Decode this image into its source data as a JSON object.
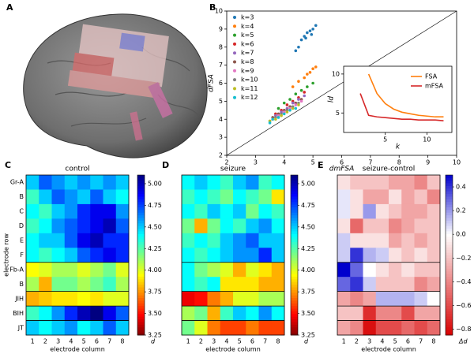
{
  "panels": [
    "A",
    "B",
    "C",
    "D",
    "E"
  ],
  "chart_data": [
    {
      "type": "scatter",
      "xlabel": "dmFSA",
      "ylabel": "dFSA",
      "xlim": [
        2,
        10
      ],
      "ylim": [
        2,
        10
      ],
      "xticks": [
        2,
        3,
        4,
        5,
        6,
        7,
        8,
        9,
        10
      ],
      "yticks": [
        2,
        3,
        4,
        5,
        6,
        7,
        8,
        9,
        10
      ],
      "series": [
        {
          "name": "k=3",
          "color": "#1f77b4",
          "x": [
            4.5,
            4.6,
            4.7,
            4.8,
            4.9,
            5.0,
            5.1,
            4.4,
            4.75,
            4.95
          ],
          "values": [
            8.0,
            8.4,
            8.6,
            8.8,
            8.9,
            9.0,
            9.2,
            7.8,
            8.5,
            8.7
          ]
        },
        {
          "name": "k=4",
          "color": "#ff7f0e",
          "x": [
            4.3,
            4.5,
            4.7,
            4.8,
            4.9,
            5.0,
            5.1
          ],
          "values": [
            5.8,
            6.1,
            6.3,
            6.5,
            6.6,
            6.8,
            6.9
          ]
        },
        {
          "name": "k=5",
          "color": "#2ca02c",
          "x": [
            3.8,
            4.0,
            4.2,
            4.4,
            4.6,
            4.8,
            5.0
          ],
          "values": [
            4.6,
            4.9,
            5.1,
            5.4,
            5.6,
            5.8,
            6.0
          ]
        },
        {
          "name": "k=6",
          "color": "#d62728",
          "x": [
            3.7,
            3.9,
            4.1,
            4.3,
            4.5,
            4.7
          ],
          "values": [
            4.3,
            4.5,
            4.8,
            5.0,
            5.2,
            5.5
          ]
        },
        {
          "name": "k=7",
          "color": "#9467bd",
          "x": [
            3.7,
            3.9,
            4.1,
            4.3,
            4.5,
            4.7
          ],
          "values": [
            4.2,
            4.4,
            4.6,
            4.9,
            5.1,
            5.3
          ]
        },
        {
          "name": "k=8",
          "color": "#8c564b",
          "x": [
            3.6,
            3.8,
            4.0,
            4.2,
            4.4,
            4.6
          ],
          "values": [
            4.1,
            4.3,
            4.5,
            4.7,
            4.9,
            5.1
          ]
        },
        {
          "name": "k=9",
          "color": "#e377c2",
          "x": [
            3.6,
            3.8,
            4.0,
            4.2,
            4.4,
            4.6
          ],
          "values": [
            4.0,
            4.2,
            4.4,
            4.6,
            4.8,
            5.0
          ]
        },
        {
          "name": "k=10",
          "color": "#7f7f7f",
          "x": [
            3.5,
            3.7,
            3.9,
            4.1,
            4.3,
            4.5
          ],
          "values": [
            3.9,
            4.1,
            4.3,
            4.5,
            4.7,
            4.9
          ]
        },
        {
          "name": "k=11",
          "color": "#bcbd22",
          "x": [
            3.5,
            3.7,
            3.9,
            4.1,
            4.3,
            4.5
          ],
          "values": [
            3.9,
            4.0,
            4.2,
            4.4,
            4.6,
            4.8
          ]
        },
        {
          "name": "k=12",
          "color": "#17becf",
          "x": [
            3.5,
            3.6,
            3.8,
            4.0,
            4.2,
            4.4
          ],
          "values": [
            3.8,
            4.0,
            4.1,
            4.3,
            4.5,
            4.6
          ]
        }
      ]
    },
    {
      "type": "line",
      "xlabel": "k",
      "ylabel": "ld",
      "xlim": [
        0,
        13
      ],
      "ylim": [
        2.5,
        11
      ],
      "xticks": [
        5,
        10
      ],
      "yticks": [
        5,
        10
      ],
      "x": [
        2,
        3,
        4,
        5,
        6,
        7,
        8,
        9,
        10,
        11,
        12
      ],
      "series": [
        {
          "name": "FSA",
          "color": "#ff7f0e",
          "values": [
            null,
            10.0,
            7.5,
            6.2,
            5.5,
            5.1,
            4.9,
            4.7,
            4.6,
            4.5,
            4.5
          ]
        },
        {
          "name": "mFSA",
          "color": "#d62728",
          "values": [
            7.5,
            4.7,
            4.5,
            4.4,
            4.3,
            4.2,
            4.2,
            4.1,
            4.1,
            4.1,
            4.0
          ]
        }
      ]
    },
    {
      "type": "heatmap",
      "title": "control",
      "xlabel": "electrode column",
      "ylabel": "electrode row",
      "colorbar_label": "d",
      "colormap": "jet_r",
      "categories": [
        1,
        2,
        3,
        4,
        5,
        6,
        7,
        8
      ],
      "rows": [
        "Gr-A",
        "B",
        "C",
        "D",
        "E",
        "F",
        "Fb-A",
        "B",
        "JIH",
        "BIH",
        "JT"
      ],
      "clim": [
        3.25,
        5.1
      ],
      "cticks": [
        {
          "value": 3.25,
          "label": "3.25"
        },
        {
          "value": 3.5,
          "label": "3.50"
        },
        {
          "value": 3.75,
          "label": "3.75"
        },
        {
          "value": 4.0,
          "label": "4.00"
        },
        {
          "value": 4.25,
          "label": "4.25"
        },
        {
          "value": 4.5,
          "label": "4.50"
        },
        {
          "value": 4.75,
          "label": "4.75"
        },
        {
          "value": 5.0,
          "label": "5.00"
        }
      ],
      "values": [
        [
          4.5,
          4.7,
          4.6,
          4.5,
          4.6,
          4.5,
          4.6,
          4.5
        ],
        [
          4.3,
          4.5,
          4.7,
          4.6,
          4.5,
          4.7,
          4.5,
          4.4
        ],
        [
          4.4,
          4.3,
          4.5,
          4.6,
          4.8,
          4.9,
          4.9,
          4.6
        ],
        [
          4.3,
          4.4,
          4.6,
          4.7,
          4.8,
          4.9,
          5.0,
          4.7
        ],
        [
          4.4,
          4.5,
          4.5,
          4.7,
          4.9,
          5.0,
          4.8,
          4.8
        ],
        [
          4.4,
          4.3,
          4.4,
          4.5,
          4.7,
          4.8,
          4.9,
          4.8
        ],
        [
          3.95,
          4.0,
          4.1,
          4.1,
          4.0,
          4.1,
          4.2,
          4.0
        ],
        [
          4.1,
          3.8,
          4.2,
          4.2,
          4.1,
          4.2,
          4.3,
          4.1
        ],
        [
          3.8,
          3.85,
          3.9,
          3.9,
          3.95,
          3.9,
          4.0,
          4.0
        ],
        [
          4.3,
          4.4,
          4.6,
          4.8,
          5.0,
          5.1,
          4.9,
          4.7
        ],
        [
          4.5,
          4.4,
          4.5,
          4.6,
          4.4,
          4.5,
          4.7,
          4.5
        ]
      ]
    },
    {
      "type": "heatmap",
      "title": "seizure",
      "xlabel": "electrode column",
      "colorbar_label": "d",
      "colormap": "jet_r",
      "categories": [
        1,
        2,
        3,
        4,
        5,
        6,
        7,
        8
      ],
      "clim": [
        3.25,
        5.1
      ],
      "cticks": [
        {
          "value": 3.25,
          "label": "3.25"
        },
        {
          "value": 3.5,
          "label": "3.50"
        },
        {
          "value": 3.75,
          "label": "3.75"
        },
        {
          "value": 4.0,
          "label": "4.00"
        },
        {
          "value": 4.25,
          "label": "4.25"
        },
        {
          "value": 4.5,
          "label": "4.50"
        },
        {
          "value": 4.75,
          "label": "4.75"
        },
        {
          "value": 5.0,
          "label": "5.00"
        }
      ],
      "values": [
        [
          4.4,
          4.5,
          4.4,
          4.3,
          4.5,
          4.6,
          4.3,
          4.4
        ],
        [
          4.3,
          4.4,
          4.3,
          4.2,
          4.4,
          4.3,
          4.2,
          3.9
        ],
        [
          4.4,
          4.3,
          4.5,
          4.4,
          4.5,
          4.2,
          4.4,
          4.3
        ],
        [
          4.2,
          3.8,
          4.2,
          4.4,
          4.3,
          4.5,
          4.6,
          4.4
        ],
        [
          4.3,
          4.4,
          4.3,
          4.5,
          4.6,
          4.7,
          4.5,
          4.5
        ],
        [
          4.4,
          4.3,
          4.4,
          4.5,
          4.6,
          4.6,
          4.8,
          4.5
        ],
        [
          4.4,
          4.2,
          4.1,
          4.0,
          3.8,
          4.0,
          3.9,
          3.8
        ],
        [
          4.4,
          4.3,
          4.4,
          3.9,
          3.9,
          3.9,
          3.8,
          3.8
        ],
        [
          3.45,
          3.5,
          3.7,
          3.8,
          4.0,
          4.0,
          4.1,
          4.1
        ],
        [
          4.1,
          4.2,
          3.8,
          4.3,
          4.5,
          4.4,
          4.6,
          4.4
        ],
        [
          4.2,
          4.0,
          3.7,
          3.6,
          3.6,
          3.7,
          3.6,
          3.6
        ]
      ]
    },
    {
      "type": "heatmap",
      "title": "seizure-control",
      "xlabel": "electrode column",
      "colorbar_label": "Δd",
      "colormap": "diverging",
      "categories": [
        1,
        2,
        3,
        4,
        5,
        6,
        7,
        8
      ],
      "clim": [
        -0.85,
        0.5
      ],
      "cticks": [
        {
          "value": -0.8,
          "label": "−0.8"
        },
        {
          "value": -0.6,
          "label": "−0.6"
        },
        {
          "value": -0.4,
          "label": "−0.4"
        },
        {
          "value": -0.2,
          "label": "−0.2"
        },
        {
          "value": 0.0,
          "label": "0.0"
        },
        {
          "value": 0.2,
          "label": "0.2"
        },
        {
          "value": 0.4,
          "label": "0.4"
        }
      ],
      "values": [
        [
          -0.1,
          -0.2,
          -0.2,
          -0.2,
          -0.3,
          -0.3,
          -0.4,
          -0.2
        ],
        [
          0.05,
          -0.1,
          -0.3,
          -0.3,
          -0.1,
          -0.3,
          -0.2,
          -0.4
        ],
        [
          0.05,
          -0.1,
          0.2,
          -0.1,
          -0.2,
          -0.3,
          -0.3,
          -0.2
        ],
        [
          -0.1,
          -0.5,
          -0.2,
          -0.2,
          -0.4,
          -0.3,
          -0.2,
          -0.2
        ],
        [
          0.1,
          -0.1,
          -0.1,
          -0.1,
          -0.3,
          -0.2,
          -0.3,
          -0.2
        ],
        [
          0.1,
          0.4,
          0.15,
          0.1,
          -0.1,
          -0.2,
          -0.1,
          -0.2
        ],
        [
          0.5,
          0.3,
          0.0,
          -0.1,
          -0.2,
          -0.1,
          -0.2,
          -0.2
        ],
        [
          0.3,
          0.4,
          0.1,
          -0.2,
          -0.2,
          -0.2,
          -0.4,
          -0.3
        ],
        [
          -0.3,
          -0.4,
          -0.3,
          0.15,
          0.15,
          0.15,
          0.1,
          0.0
        ],
        [
          -0.2,
          -0.2,
          -0.7,
          -0.4,
          -0.4,
          -0.6,
          -0.3,
          -0.3
        ],
        [
          -0.3,
          -0.4,
          -0.8,
          -0.6,
          -0.6,
          -0.5,
          -0.6,
          -0.5
        ]
      ]
    }
  ]
}
